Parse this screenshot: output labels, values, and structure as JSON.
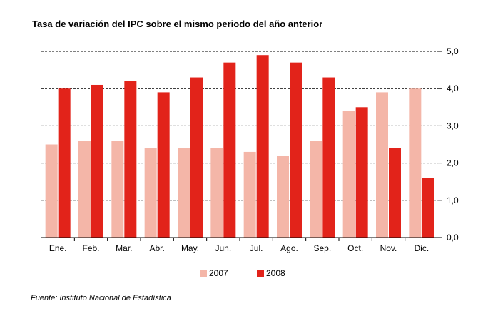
{
  "title": "Tasa de variación del IPC sobre el mismo periodo del año anterior",
  "source": "Fuente: Instituto Nacional de Estadística",
  "colors": {
    "series_2007": "#f4b6a8",
    "series_2008": "#e2231a",
    "grid": "#000000",
    "axis": "#000000"
  },
  "chart_data": {
    "type": "bar",
    "categories": [
      "Ene.",
      "Feb.",
      "Mar.",
      "Abr.",
      "May.",
      "Jun.",
      "Jul.",
      "Ago.",
      "Sep.",
      "Oct.",
      "Nov.",
      "Dic."
    ],
    "series": [
      {
        "name": "2007",
        "values": [
          2.5,
          2.6,
          2.6,
          2.4,
          2.4,
          2.4,
          2.3,
          2.2,
          2.6,
          3.4,
          3.9,
          4.0
        ]
      },
      {
        "name": "2008",
        "values": [
          4.0,
          4.1,
          4.2,
          3.9,
          4.3,
          4.7,
          4.9,
          4.7,
          4.3,
          3.5,
          2.4,
          1.6
        ]
      }
    ],
    "ylim": [
      0,
      5
    ],
    "yticks": [
      "0,0",
      "1,0",
      "2,0",
      "3,0",
      "4,0",
      "5,0"
    ],
    "y_axis_side": "right",
    "grid": "dashed horizontal",
    "legend_position": "bottom"
  }
}
